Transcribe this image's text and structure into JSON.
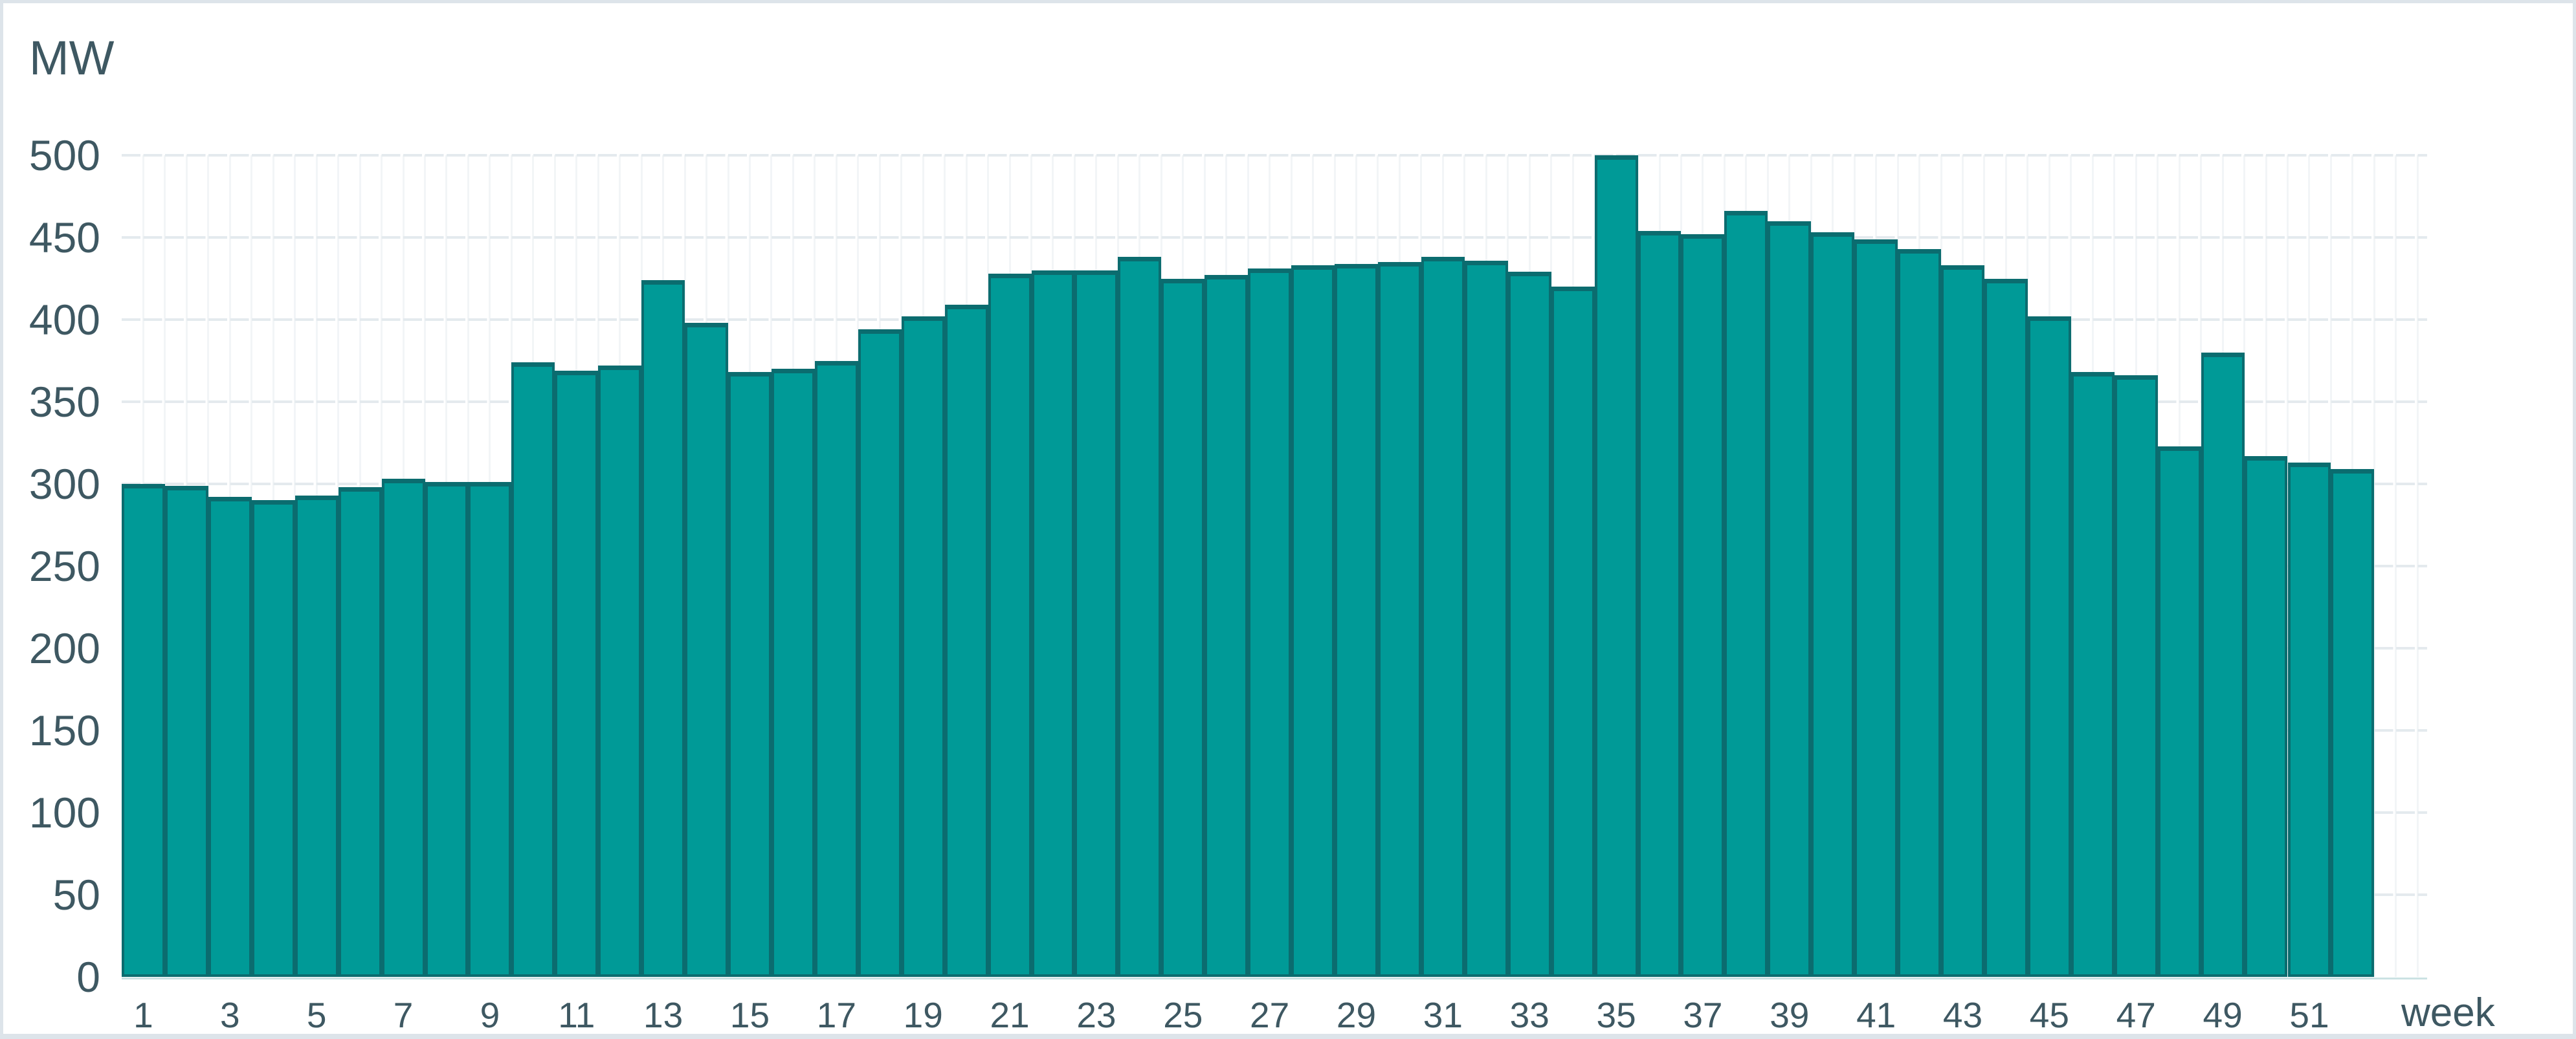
{
  "y_axis": {
    "unit_label": "MW",
    "tick_labels": [
      "0",
      "50",
      "100",
      "150",
      "200",
      "250",
      "300",
      "350",
      "400",
      "450",
      "500"
    ]
  },
  "x_axis": {
    "axis_label": "week",
    "tick_labels": [
      "1",
      "3",
      "5",
      "7",
      "9",
      "11",
      "13",
      "15",
      "17",
      "19",
      "21",
      "23",
      "25",
      "27",
      "29",
      "31",
      "33",
      "35",
      "37",
      "39",
      "41",
      "43",
      "45",
      "47",
      "49",
      "51"
    ]
  },
  "chart_data": {
    "type": "bar",
    "title": "",
    "xlabel": "week",
    "ylabel": "MW",
    "x": [
      1,
      2,
      3,
      4,
      5,
      6,
      7,
      8,
      9,
      10,
      11,
      12,
      13,
      14,
      15,
      16,
      17,
      18,
      19,
      20,
      21,
      22,
      23,
      24,
      25,
      26,
      27,
      28,
      29,
      30,
      31,
      32,
      33,
      34,
      35,
      36,
      37,
      38,
      39,
      40,
      41,
      42,
      43,
      44,
      45,
      46,
      47,
      48,
      49,
      50,
      51,
      52
    ],
    "values": [
      300,
      299,
      292,
      290,
      293,
      298,
      303,
      301,
      301,
      374,
      369,
      372,
      424,
      398,
      368,
      370,
      375,
      394,
      402,
      409,
      428,
      430,
      430,
      438,
      425,
      427,
      431,
      433,
      434,
      435,
      438,
      436,
      429,
      420,
      500,
      454,
      452,
      466,
      460,
      453,
      449,
      443,
      433,
      425,
      402,
      368,
      366,
      323,
      380,
      317,
      313,
      309
    ],
    "ylim": [
      0,
      500
    ],
    "ytick_step": 50,
    "xtick_labels_shown": "odd weeks 1-51",
    "grid": "horizontal dashed lines every 50 MW, faint vertical lines every half week",
    "legend": "none"
  },
  "colors": {
    "bar_fill": "#009a97",
    "bar_border": "#0b6c6f",
    "axis_text": "#3e5862",
    "h_gridline": "#e4eaee",
    "v_gridline": "#f2f5f7",
    "frame": "#dde4ea",
    "baseline": "#cbe2e3",
    "background": "#ffffff"
  }
}
